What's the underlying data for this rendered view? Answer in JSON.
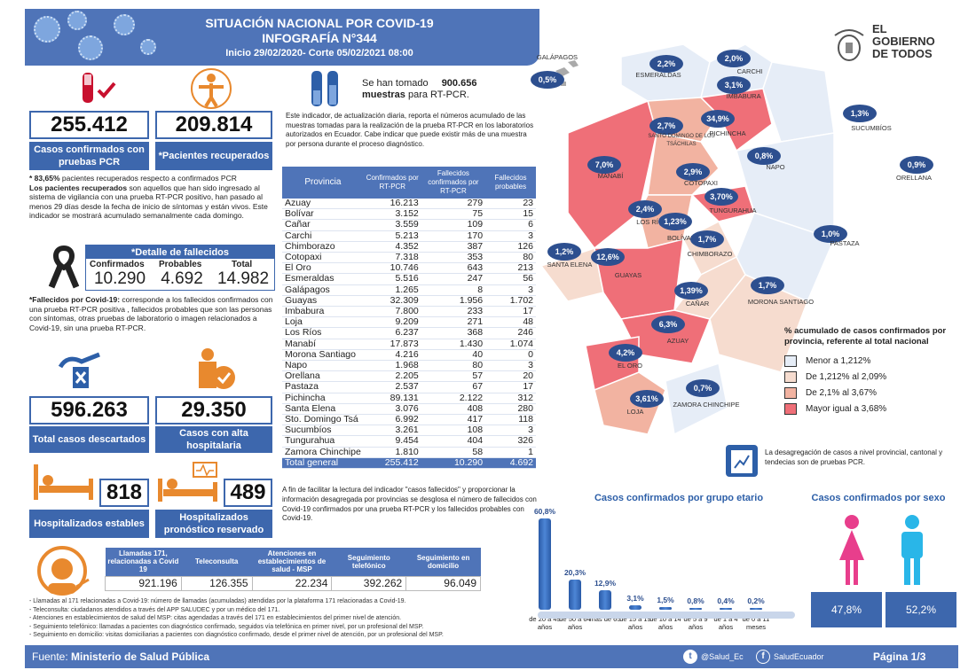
{
  "header": {
    "title1": "SITUACIÓN NACIONAL POR  COVID-19",
    "title2": "INFOGRAFÍA N°344",
    "subtitle": "Inicio 29/02/2020- Corte 05/02/2021 08:00"
  },
  "logo": {
    "line1": "EL",
    "line2": "GOBIERNO",
    "line3": "DE TODOS"
  },
  "stats": {
    "confirmed_value": "255.412",
    "confirmed_label": "Casos confirmados con pruebas PCR",
    "recovered_value": "209.814",
    "recovered_label": "*Pacientes recuperados",
    "recovered_pct": "* 83,65%",
    "recovered_pct_text": " pacientes recuperados respecto a confirmados PCR",
    "recovered_def_bold": "Los pacientes recuperados",
    "recovered_def": " son aquellos que han sido ingresado al sistema de vigilancia con una prueba RT-PCR positivo, han pasado al menos 29 días desde la fecha de inicio de síntomas y están vivos. Este indicador se mostrará acumulado semanalmente cada domingo.",
    "discarded_value": "596.263",
    "discarded_label": "Total casos descartados",
    "discharged_value": "29.350",
    "discharged_label": "Casos con alta hospitalaria",
    "hosp_stable_value": "818",
    "hosp_stable_label": "Hospitalizados estables",
    "hosp_reserved_value": "489",
    "hosp_reserved_label": "Hospitalizados pronóstico reservado"
  },
  "deaths": {
    "title": "*Detalle de fallecidos",
    "confirmed_label": "Confirmados",
    "probable_label": "Probables",
    "total_label": "Total",
    "confirmed": "10.290",
    "probable": "4.692",
    "total": "14.982",
    "def_bold": "*Fallecidos por Covid-19:",
    "def": " corresponde a los fallecidos confirmados con una prueba RT-PCR positiva , fallecidos probables que son las personas con síntomas, otras pruebas de laboratorio o imagen relacionados a Covid-19, sin una prueba RT-PCR."
  },
  "samples": {
    "prefix": "Se han tomado",
    "value": "900.656",
    "suffix_bold": "muestras",
    "suffix": " para RT-PCR.",
    "note": "Este indicador, de actualización diaria, reporta el números acumulado de las muestras tomadas para la realización de la prueba RT-PCR en los laboratorios autorizados en Ecuador. Cabe indicar que puede existir más de una muestra por persona durante el proceso diagnóstico."
  },
  "table": {
    "headers": [
      "Provincia",
      "Confirmados por RT-PCR",
      "Fallecidos confirmados por RT-PCR",
      "Fallecidos probables"
    ],
    "rows": [
      [
        "Azuay",
        "16.213",
        "279",
        "23"
      ],
      [
        "Bolívar",
        "3.152",
        "75",
        "15"
      ],
      [
        "Cañar",
        "3.559",
        "109",
        "6"
      ],
      [
        "Carchi",
        "5.213",
        "170",
        "3"
      ],
      [
        "Chimborazo",
        "4.352",
        "387",
        "126"
      ],
      [
        "Cotopaxi",
        "7.318",
        "353",
        "80"
      ],
      [
        "El Oro",
        "10.746",
        "643",
        "213"
      ],
      [
        "Esmeraldas",
        "5.516",
        "247",
        "56"
      ],
      [
        "Galápagos",
        "1.265",
        "8",
        "3"
      ],
      [
        "Guayas",
        "32.309",
        "1.956",
        "1.702"
      ],
      [
        "Imbabura",
        "7.800",
        "233",
        "17"
      ],
      [
        "Loja",
        "9.209",
        "271",
        "48"
      ],
      [
        "Los Ríos",
        "6.237",
        "368",
        "246"
      ],
      [
        "Manabí",
        "17.873",
        "1.430",
        "1.074"
      ],
      [
        "Morona Santiago",
        "4.216",
        "40",
        "0"
      ],
      [
        "Napo",
        "1.968",
        "80",
        "3"
      ],
      [
        "Orellana",
        "2.205",
        "57",
        "20"
      ],
      [
        "Pastaza",
        "2.537",
        "67",
        "17"
      ],
      [
        "Pichincha",
        "89.131",
        "2.122",
        "312"
      ],
      [
        "Santa Elena",
        "3.076",
        "408",
        "280"
      ],
      [
        "Sto. Domingo Tsá",
        "6.992",
        "417",
        "118"
      ],
      [
        "Sucumbíos",
        "3.261",
        "108",
        "3"
      ],
      [
        "Tungurahua",
        "9.454",
        "404",
        "326"
      ],
      [
        "Zamora Chinchipe",
        "1.810",
        "58",
        "1"
      ]
    ],
    "total": [
      "Total general",
      "255.412",
      "10.290",
      "4.692"
    ],
    "note": "A fin de facilitar la lectura del indicador \"casos fallecidos\" y proporcionar la información desagregada por provincias se desglosa el número de fallecidos con Covid-19 confirmados por una prueba RT-PCR y los fallecidos probables con Covid-19."
  },
  "map": {
    "provinces": [
      {
        "name": "GALÁPAGOS",
        "pct": "0,5%"
      },
      {
        "name": "ESMERALDAS",
        "pct": "2,2%"
      },
      {
        "name": "CARCHI",
        "pct": "2,0%"
      },
      {
        "name": "IMBABURA",
        "pct": "3,1%"
      },
      {
        "name": "SUCUMBÍOS",
        "pct": "1,3%"
      },
      {
        "name": "SANTO DOMINGO DE LOS TSÁCHILAS",
        "pct": "2,7%"
      },
      {
        "name": "PICHINCHA",
        "pct": "34,9%"
      },
      {
        "name": "MANABÍ",
        "pct": "7,0%"
      },
      {
        "name": "NAPO",
        "pct": "0,8%"
      },
      {
        "name": "ORELLANA",
        "pct": "0,9%"
      },
      {
        "name": "COTOPAXI",
        "pct": "2,9%"
      },
      {
        "name": "TUNGURAHUA",
        "pct": "3,70%"
      },
      {
        "name": "LOS RÍOS",
        "pct": "2,4%"
      },
      {
        "name": "BOLÍVAR",
        "pct": "1,23%"
      },
      {
        "name": "CHIMBORAZO",
        "pct": "1,7%"
      },
      {
        "name": "PASTAZA",
        "pct": "1,0%"
      },
      {
        "name": "SANTA ELENA",
        "pct": "1,2%"
      },
      {
        "name": "GUAYAS",
        "pct": "12,6%"
      },
      {
        "name": "CAÑAR",
        "pct": "1,39%"
      },
      {
        "name": "MORONA SANTIAGO",
        "pct": "1,7%"
      },
      {
        "name": "AZUAY",
        "pct": "6,3%"
      },
      {
        "name": "EL ORO",
        "pct": "4,2%"
      },
      {
        "name": "ZAMORA CHINCHIPE",
        "pct": "0,7%"
      },
      {
        "name": "LOJA",
        "pct": "3,61%"
      }
    ],
    "legend_title": "% acumulado de casos confirmados por provincia, referente al total nacional",
    "legend": [
      {
        "label": "Menor a 1,212%",
        "color": "#e6edf7"
      },
      {
        "label": "De 1,212% al 2,09%",
        "color": "#f6dccf"
      },
      {
        "label": "De 2,1% al 3,67%",
        "color": "#f2b3a1"
      },
      {
        "label": "Mayor igual a 3,68%",
        "color": "#ef6f78"
      }
    ],
    "disaggregation_note": "La desagregación de casos a nivel provincial, cantonal y tendecias son  de pruebas PCR."
  },
  "chart_data": [
    {
      "type": "bar",
      "title": "Casos confirmados por grupo etario",
      "categories": [
        "de 20 a 49 años",
        "de 50 a 64 años",
        "mas de 65",
        "de 15 a 19 años",
        "de 10 a 14 años",
        "de 5 a 9 años",
        "de 1 a 4 años",
        "de 0 a 11 meses"
      ],
      "values": [
        60.8,
        20.3,
        12.9,
        3.1,
        1.5,
        0.8,
        0.4,
        0.2
      ],
      "labels": [
        "60,8%",
        "20,3%",
        "12,9%",
        "3,1%",
        "1,5%",
        "0,8%",
        "0,4%",
        "0,2%"
      ],
      "ylim": [
        0,
        65
      ]
    },
    {
      "type": "bar",
      "title": "Casos confirmados por sexo",
      "categories": [
        "Mujeres",
        "Hombres"
      ],
      "values": [
        47.8,
        52.2
      ],
      "labels": [
        "47,8%",
        "52,2%"
      ]
    }
  ],
  "calls": {
    "headers": [
      "Llamadas 171, relacionadas a Covid 19",
      "Teleconsulta",
      "Atenciones en establecimientos de salud - MSP",
      "Seguimiento telefónico",
      "Seguimiento en domicilio"
    ],
    "values": [
      "921.196",
      "126.355",
      "22.234",
      "392.262",
      "96.049"
    ],
    "notes": [
      "- Llamadas al 171 relacionadas a Covid-19: número de llamadas (acumuladas) atendidas por la plataforma 171 relacionadas a Covid-19.",
      "- Teleconsulta: ciudadanos atendidos a través del APP SALUDEC y por un médico del 171.",
      "- Atenciones en establecimientos de salud del MSP:  citas agendadas a través del 171 en establecimientos del primer nivel de atención.",
      "- Seguimiento telefónico: llamadas a pacientes con diagnóstico confirmado, seguidos vía telefónica en primer nivel, por un profesional del MSP.",
      "- Seguimiento en domicilio: visitas domiciliarias a pacientes con diagnóstico confirmado, desde el primer nivel de atención, por un profesional del MSP."
    ]
  },
  "footer": {
    "source_label": "Fuente:",
    "source": " Ministerio de Salud Pública",
    "twitter": "@Salud_Ec",
    "facebook": "SaludEcuador",
    "page": "Página 1/3"
  }
}
